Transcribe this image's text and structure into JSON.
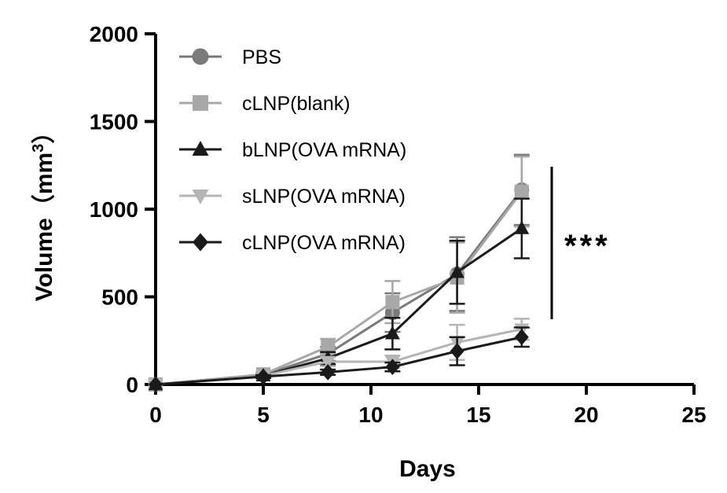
{
  "chart_data": {
    "type": "line",
    "title": "",
    "xlabel": "Days",
    "ylabel": {
      "main": "Volume（mm",
      "superscript": "3",
      "close": "）"
    },
    "xlim": [
      0,
      25
    ],
    "ylim": [
      0,
      2000
    ],
    "xticks": [
      "0",
      "5",
      "10",
      "15",
      "20",
      "25"
    ],
    "yticks": [
      "0",
      "500",
      "1000",
      "1500",
      "2000"
    ],
    "grid": false,
    "legend_position": "top-left",
    "significance": "***",
    "series": [
      {
        "name": "PBS",
        "marker": "circle",
        "color": "#7a7a7a",
        "x": [
          0,
          5,
          8,
          11,
          14,
          17
        ],
        "y": [
          0,
          55,
          175,
          410,
          630,
          1110
        ],
        "err": [
          0,
          10,
          40,
          110,
          210,
          200
        ]
      },
      {
        "name": "cLNP(blank)",
        "marker": "square",
        "color": "#a8a8a8",
        "x": [
          0,
          5,
          8,
          11,
          14,
          17
        ],
        "y": [
          0,
          58,
          215,
          470,
          610,
          1100
        ],
        "err": [
          0,
          10,
          45,
          120,
          200,
          200
        ]
      },
      {
        "name": "bLNP(OVA mRNA)",
        "marker": "triangle-up",
        "color": "#1a1a1a",
        "x": [
          0,
          5,
          8,
          11,
          14,
          17
        ],
        "y": [
          0,
          50,
          150,
          290,
          640,
          890
        ],
        "err": [
          0,
          10,
          35,
          90,
          180,
          170
        ]
      },
      {
        "name": "sLNP(OVA mRNA)",
        "marker": "triangle-down",
        "color": "#b5b5b5",
        "x": [
          0,
          5,
          8,
          11,
          14,
          17
        ],
        "y": [
          0,
          50,
          130,
          130,
          240,
          315
        ],
        "err": [
          0,
          10,
          25,
          35,
          100,
          60
        ]
      },
      {
        "name": "cLNP(OVA mRNA)",
        "marker": "diamond",
        "color": "#1a1a1a",
        "x": [
          0,
          5,
          8,
          11,
          14,
          17
        ],
        "y": [
          0,
          45,
          70,
          100,
          190,
          270
        ],
        "err": [
          0,
          8,
          15,
          25,
          80,
          55
        ]
      }
    ]
  }
}
